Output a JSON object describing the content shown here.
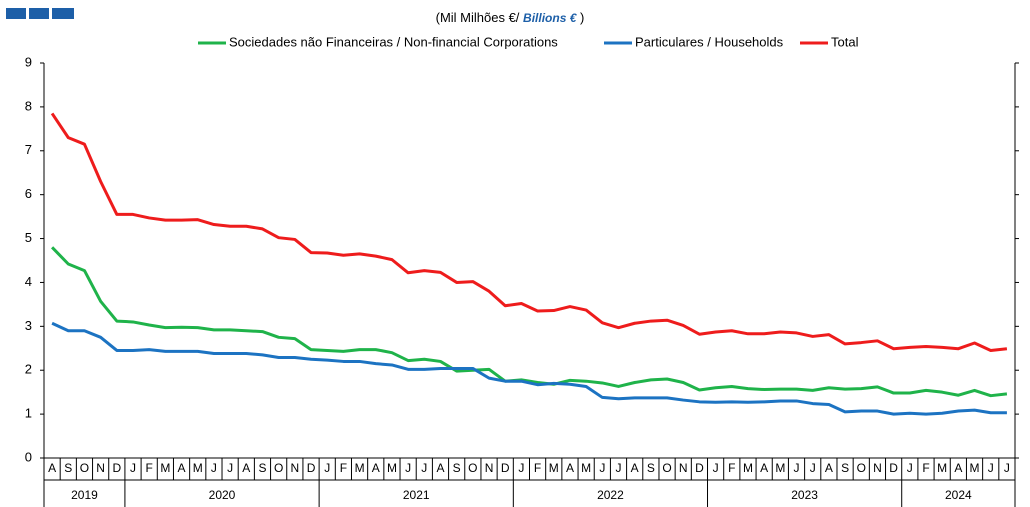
{
  "chart_data": {
    "type": "line",
    "subtitle": "(Mil Milhões €/",
    "subtitle_en": "Billions €",
    "subtitle_close": ")",
    "categories": [
      "A",
      "S",
      "O",
      "N",
      "D",
      "J",
      "F",
      "M",
      "A",
      "M",
      "J",
      "J",
      "A",
      "S",
      "O",
      "N",
      "D",
      "J",
      "F",
      "M",
      "A",
      "M",
      "J",
      "J",
      "A",
      "S",
      "O",
      "N",
      "D",
      "J",
      "F",
      "M",
      "A",
      "M",
      "J",
      "J",
      "A",
      "S",
      "O",
      "N",
      "D",
      "J",
      "F",
      "M",
      "A",
      "M",
      "J",
      "J",
      "A",
      "S",
      "O",
      "N",
      "D",
      "J",
      "F",
      "M",
      "A",
      "M",
      "J",
      "J"
    ],
    "years": [
      "2019",
      "2020",
      "2021",
      "2022",
      "2023",
      "2024"
    ],
    "series": [
      {
        "name": "Sociedades não Financeiras / Non-financial Corporations",
        "color": "#1fb34a",
        "values": [
          4.8,
          4.42,
          4.27,
          3.57,
          3.12,
          3.1,
          3.03,
          2.97,
          2.98,
          2.97,
          2.92,
          2.92,
          2.9,
          2.88,
          2.75,
          2.72,
          2.47,
          2.45,
          2.43,
          2.47,
          2.47,
          2.4,
          2.22,
          2.25,
          2.2,
          1.98,
          2.0,
          2.02,
          1.75,
          1.78,
          1.72,
          1.68,
          1.77,
          1.75,
          1.71,
          1.63,
          1.72,
          1.78,
          1.8,
          1.72,
          1.55,
          1.6,
          1.63,
          1.58,
          1.56,
          1.57,
          1.57,
          1.54,
          1.6,
          1.57,
          1.58,
          1.62,
          1.48,
          1.48,
          1.54,
          1.5,
          1.43,
          1.54,
          1.42,
          1.46
        ]
      },
      {
        "name": "Particulares / Households",
        "color": "#1c73c2",
        "values": [
          3.07,
          2.9,
          2.9,
          2.75,
          2.45,
          2.45,
          2.47,
          2.43,
          2.43,
          2.43,
          2.38,
          2.38,
          2.38,
          2.35,
          2.29,
          2.29,
          2.25,
          2.23,
          2.2,
          2.2,
          2.15,
          2.12,
          2.02,
          2.02,
          2.04,
          2.04,
          2.04,
          1.82,
          1.75,
          1.75,
          1.67,
          1.7,
          1.68,
          1.63,
          1.38,
          1.35,
          1.37,
          1.37,
          1.37,
          1.32,
          1.28,
          1.27,
          1.28,
          1.27,
          1.28,
          1.3,
          1.3,
          1.24,
          1.22,
          1.05,
          1.07,
          1.07,
          1.0,
          1.02,
          1.0,
          1.02,
          1.07,
          1.09,
          1.03,
          1.03
        ]
      },
      {
        "name": "Total",
        "color": "#ee1c1c",
        "values": [
          7.85,
          7.3,
          7.15,
          6.3,
          5.55,
          5.55,
          5.47,
          5.42,
          5.42,
          5.43,
          5.32,
          5.28,
          5.28,
          5.22,
          5.02,
          4.98,
          4.68,
          4.67,
          4.62,
          4.65,
          4.6,
          4.52,
          4.22,
          4.27,
          4.23,
          4.0,
          4.02,
          3.8,
          3.47,
          3.52,
          3.35,
          3.36,
          3.45,
          3.37,
          3.08,
          2.97,
          3.07,
          3.12,
          3.14,
          3.02,
          2.82,
          2.87,
          2.9,
          2.83,
          2.83,
          2.87,
          2.85,
          2.77,
          2.81,
          2.6,
          2.63,
          2.67,
          2.49,
          2.52,
          2.54,
          2.52,
          2.49,
          2.62,
          2.45,
          2.49
        ]
      }
    ],
    "ylim": [
      0,
      9
    ],
    "yticks": [
      0,
      1,
      2,
      3,
      4,
      5,
      6,
      7,
      8,
      9
    ]
  }
}
